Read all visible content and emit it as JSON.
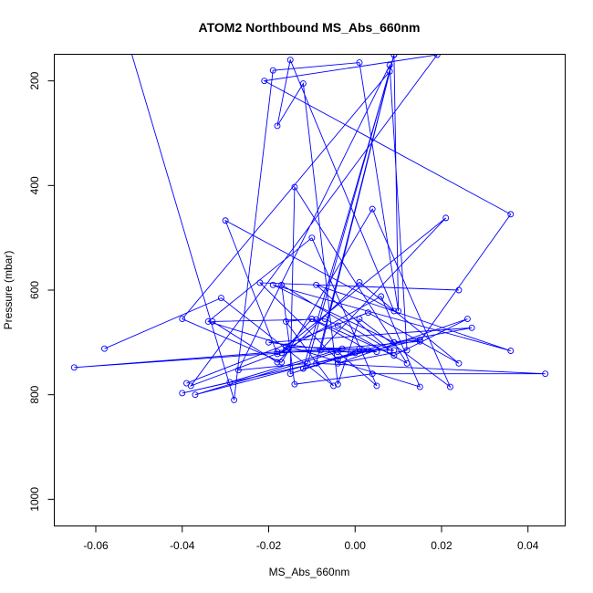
{
  "chart_data": {
    "type": "line",
    "title": "ATOM2 Northbound MS_Abs_660nm",
    "xlabel": "MS_Abs_660nm",
    "ylabel": "Pressure (mbar)",
    "xlim": [
      -0.0695,
      0.0485
    ],
    "ylim": [
      1050,
      150
    ],
    "y_reversed": true,
    "x_ticks": [
      -0.06,
      -0.04,
      -0.02,
      0.0,
      0.02,
      0.04
    ],
    "x_tick_labels": [
      "-0.06",
      "-0.04",
      "-0.02",
      "0.00",
      "0.02",
      "0.04"
    ],
    "y_ticks": [
      200,
      400,
      600,
      800,
      1000
    ],
    "y_tick_labels": [
      "200",
      "400",
      "600",
      "800",
      "1000"
    ],
    "series_color": "#0000ff",
    "markers": "open-circle",
    "grid": false,
    "legend": "none",
    "series": [
      {
        "x": [
          -0.052,
          -0.028,
          -0.019,
          0.001,
          0.01,
          0.009,
          -0.008,
          0.021,
          -0.016,
          0.009,
          -0.016,
          -0.038,
          0.019,
          -0.021,
          0.036,
          0.015,
          -0.017,
          -0.01,
          0.009,
          0.026,
          -0.004,
          0.012,
          0.008,
          -0.027,
          -0.011,
          0.009,
          -0.009,
          0.044,
          0.004,
          -0.014,
          -0.017,
          0.008,
          -0.009,
          0.036,
          -0.019,
          0.009,
          0.015,
          -0.04,
          -0.029,
          -0.003,
          -0.065,
          -0.018,
          0.005,
          0.001,
          -0.004,
          -0.022,
          0.024
        ],
        "y": [
          140,
          810,
          180,
          165,
          640,
          150,
          715,
          462,
          708,
          715,
          715,
          783,
          150,
          200,
          455,
          698,
          720,
          655,
          725,
          655,
          740,
          715,
          170,
          753,
          740,
          150,
          740,
          760,
          760,
          780,
          590,
          715,
          590,
          716,
          590,
          700,
          695,
          797,
          776,
          712,
          748,
          718,
          718,
          712,
          733,
          586,
          600
        ]
      },
      {
        "x": [
          -0.058,
          -0.031,
          -0.005,
          -0.016,
          -0.01,
          0.003,
          -0.012,
          0.008,
          -0.04,
          -0.017,
          0.004,
          0.022,
          0.001,
          -0.004,
          -0.012,
          -0.018,
          -0.015,
          0.009,
          -0.03,
          -0.018,
          0.006,
          0.015,
          -0.034,
          -0.01,
          0.005,
          -0.004,
          -0.037,
          0.009,
          0.027,
          -0.02,
          0.0,
          -0.015,
          -0.014,
          0.012,
          -0.004,
          -0.007,
          -0.009,
          -0.033,
          -0.018,
          0.001,
          0.024,
          0.003,
          -0.039
        ],
        "y": [
          712,
          615,
          783,
          660,
          655,
          715,
          750,
          182,
          655,
          738,
          445,
          785,
          655,
          780,
          205,
          286,
          160,
          640,
          467,
          722,
          612,
          785,
          660,
          500,
          783,
          718,
          800,
          700,
          672,
          700,
          720,
          760,
          403,
          740,
          668,
          655,
          656,
          660,
          738,
          585,
          740,
          643,
          778
        ]
      }
    ]
  }
}
